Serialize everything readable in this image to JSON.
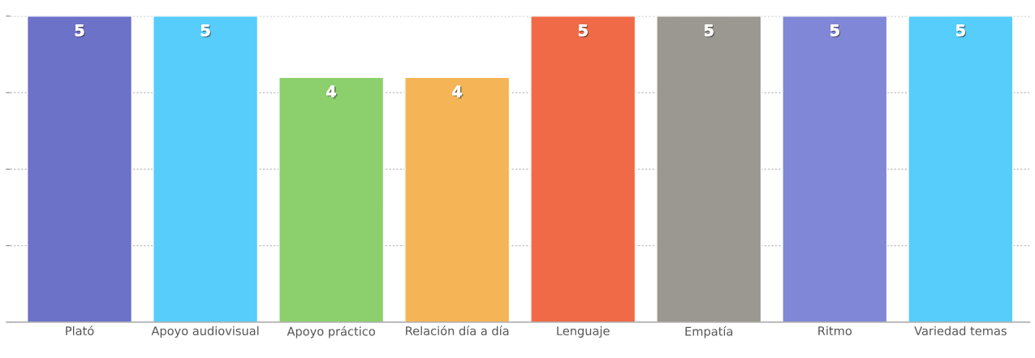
{
  "chart_data": {
    "type": "bar",
    "categories": [
      "Plató",
      "Apoyo audiovisual",
      "Apoyo práctico",
      "Relación día a día",
      "Lenguaje",
      "Empatía",
      "Ritmo",
      "Variedad temas"
    ],
    "values": [
      5,
      5,
      4,
      4,
      5,
      5,
      5,
      5
    ],
    "colors": [
      "#6c72c8",
      "#56cdfb",
      "#8bd06c",
      "#f5b556",
      "#f06a47",
      "#9b9891",
      "#8087d6",
      "#56cdfb"
    ],
    "ylim": [
      0,
      5
    ],
    "yticks": [
      {
        "value": 0,
        "label": null
      },
      {
        "value": 1.25,
        "label": null
      },
      {
        "value": 2.5,
        "label": null
      },
      {
        "value": 3.75,
        "label": null
      },
      {
        "value": 5,
        "label": null
      }
    ],
    "tick_labels": "x",
    "grid": "y",
    "data_labels": true
  }
}
